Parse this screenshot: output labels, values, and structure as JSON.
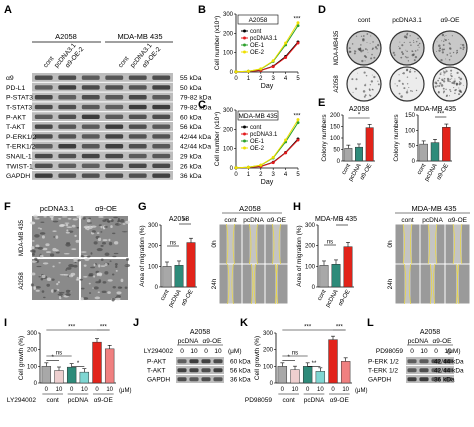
{
  "panels": {
    "a": "A",
    "b": "B",
    "c": "C",
    "d": "D",
    "e": "E",
    "f": "F",
    "g": "G",
    "h": "H",
    "i": "I",
    "j": "J",
    "k": "K",
    "l": "L"
  },
  "panel_a": {
    "cell_lines": [
      "A2058",
      "MDA-MB 435"
    ],
    "lanes": [
      "cont",
      "pcDNA3.1",
      "α9-OE-2",
      "cont",
      "pcDNA3.1",
      "α9-OE-2"
    ],
    "proteins": [
      "α9",
      "PD-L1",
      "P-STAT3",
      "T-STAT3",
      "P-AKT",
      "T-AKT",
      "P-ERK1/2",
      "T-ERK1/2",
      "SNAIL-1",
      "TWIST-1",
      "GAPDH"
    ],
    "sizes": [
      "55 kDa",
      "50 kDa",
      "79-82 kDa",
      "79-82 kDa",
      "60 kDa",
      "56 kDa",
      "42/44 kDa",
      "42/44 kDa",
      "29 kDa",
      "26 kDa",
      "36 kDa"
    ]
  },
  "panel_d": {
    "cols": [
      "cont",
      "pcDNA3.1",
      "α9-OE"
    ],
    "rows": [
      "MDA-MB435",
      "A2058"
    ]
  },
  "panel_f": {
    "cols": [
      "pcDNA3.1",
      "α9-OE"
    ],
    "rows": [
      "MDA-MB 435",
      "A2058"
    ]
  },
  "panel_g": {
    "cell": "A2058",
    "cols": [
      "cont",
      "pcDNA",
      "α9-OE"
    ],
    "rows": [
      "0h",
      "24h"
    ]
  },
  "panel_h": {
    "cell": "MDA-MB 435",
    "cols": [
      "cont",
      "pcDNA",
      "α9-OE"
    ],
    "rows": [
      "0h",
      "24h"
    ]
  },
  "panel_j": {
    "cell": "A2058",
    "groups": [
      "pcDNA",
      "α9-OE"
    ],
    "doses": [
      "0",
      "10",
      "0",
      "10"
    ],
    "unit": "(μM)",
    "inhibitor": "LY294002",
    "proteins": [
      "P-AKT",
      "T-AKT",
      "GAPDH"
    ],
    "sizes": [
      "60 kDa",
      "56 kDa",
      "36 kDa"
    ]
  },
  "panel_l": {
    "cell": "A2058",
    "groups": [
      "pcDNA",
      "α9-OE"
    ],
    "doses": [
      "0",
      "10",
      "0",
      "10"
    ],
    "unit": "(μM)",
    "inhibitor": "PD98059",
    "proteins": [
      "P-ERK 1/2",
      "T-ERK 1/2",
      "GAPDH"
    ],
    "sizes": [
      "42/44 kDa",
      "42/44 kDa",
      "36 kDa"
    ]
  },
  "chart_data": [
    {
      "type": "line",
      "panel": "B",
      "title": "A2058",
      "xlabel": "Day",
      "ylabel": "Cell number (x10⁴)",
      "x": [
        0,
        1,
        2,
        3,
        4,
        5
      ],
      "xlim": [
        0,
        5
      ],
      "ylim": [
        0,
        300
      ],
      "yticks": [
        0,
        100,
        200,
        300
      ],
      "series": [
        {
          "name": "cont",
          "color": "#000000",
          "values": [
            1,
            3,
            9,
            30,
            80,
            155
          ]
        },
        {
          "name": "pcDNA3.1",
          "color": "#e31a1c",
          "values": [
            1,
            3,
            8,
            28,
            75,
            150
          ]
        },
        {
          "name": "OE-1",
          "color": "#2ca02c",
          "values": [
            1,
            4,
            15,
            55,
            140,
            240
          ]
        },
        {
          "name": "OE-2",
          "color": "#f0e000",
          "values": [
            1,
            4,
            16,
            58,
            150,
            255
          ]
        }
      ],
      "annotation": "***"
    },
    {
      "type": "line",
      "panel": "C",
      "title": "MDA-MB 435",
      "xlabel": "Day",
      "ylabel": "Cell number (x10⁴)",
      "x": [
        0,
        1,
        2,
        3,
        4,
        5
      ],
      "xlim": [
        0,
        5
      ],
      "ylim": [
        0,
        300
      ],
      "yticks": [
        0,
        100,
        200,
        300
      ],
      "series": [
        {
          "name": "cont",
          "color": "#000000",
          "values": [
            1,
            3,
            9,
            30,
            80,
            150
          ]
        },
        {
          "name": "pcDNA3.1",
          "color": "#e31a1c",
          "values": [
            1,
            3,
            8,
            28,
            78,
            145
          ]
        },
        {
          "name": "OE-1",
          "color": "#2ca02c",
          "values": [
            1,
            4,
            14,
            52,
            135,
            235
          ]
        },
        {
          "name": "OE-2",
          "color": "#f0e000",
          "values": [
            1,
            4,
            15,
            55,
            145,
            250
          ]
        }
      ],
      "annotation": "***"
    },
    {
      "type": "bar",
      "panel": "E1",
      "title": "A2058",
      "ylabel": "Colony numbers",
      "categories": [
        "cont",
        "pcDNA",
        "α9-OE"
      ],
      "values": [
        55,
        60,
        145
      ],
      "ylim": [
        0,
        200
      ],
      "yticks": [
        0,
        50,
        100,
        150,
        200
      ],
      "annotation": "*"
    },
    {
      "type": "bar",
      "panel": "E2",
      "title": "MDA-MB 435",
      "ylabel": "",
      "categories": [
        "cont",
        "pcDNA",
        "α9-OE"
      ],
      "values": [
        55,
        60,
        110
      ],
      "ylim": [
        0,
        150
      ],
      "yticks": [
        0,
        50,
        100,
        150
      ],
      "annotation": "***"
    },
    {
      "type": "bar",
      "panel": "G",
      "title": "A2058",
      "ylabel": "Area of migration (%)",
      "categories": [
        "cont",
        "pcDNA",
        "α9-OE"
      ],
      "values": [
        100,
        105,
        215
      ],
      "ylim": [
        0,
        300
      ],
      "yticks": [
        0,
        100,
        200,
        300
      ],
      "annotations": [
        "ns",
        "**"
      ]
    },
    {
      "type": "bar",
      "panel": "H",
      "title": "MDA-MB 435",
      "ylabel": "Area of migration (%)",
      "categories": [
        "cont",
        "pcDNA",
        "α9-OE"
      ],
      "values": [
        105,
        110,
        195
      ],
      "ylim": [
        0,
        300
      ],
      "yticks": [
        0,
        100,
        200,
        300
      ],
      "annotations": [
        "ns",
        "*"
      ]
    },
    {
      "type": "bar",
      "panel": "I",
      "ylabel": "Cell growth (%)",
      "xlabel": "LY294002",
      "unit": "(μM)",
      "categories": [
        "0",
        "10",
        "0",
        "10",
        "0",
        "10"
      ],
      "groups": [
        "cont",
        "pcDNA",
        "α9-OE"
      ],
      "values": [
        100,
        75,
        95,
        65,
        245,
        205
      ],
      "ylim": [
        0,
        300
      ],
      "yticks": [
        0,
        100,
        200,
        300
      ],
      "annotations": [
        "*",
        "ns",
        "*",
        "***",
        "***"
      ]
    },
    {
      "type": "bar",
      "panel": "K",
      "ylabel": "Cell growth (%)",
      "xlabel": "PD98059",
      "unit": "(μM)",
      "categories": [
        "0",
        "10",
        "0",
        "10",
        "0",
        "10"
      ],
      "groups": [
        "cont",
        "pcDNA",
        "α9-OE"
      ],
      "values": [
        100,
        80,
        100,
        70,
        260,
        130
      ],
      "ylim": [
        0,
        300
      ],
      "yticks": [
        0,
        100,
        200,
        300
      ],
      "annotations": [
        "*",
        "ns",
        "**",
        "***",
        "***"
      ]
    }
  ]
}
